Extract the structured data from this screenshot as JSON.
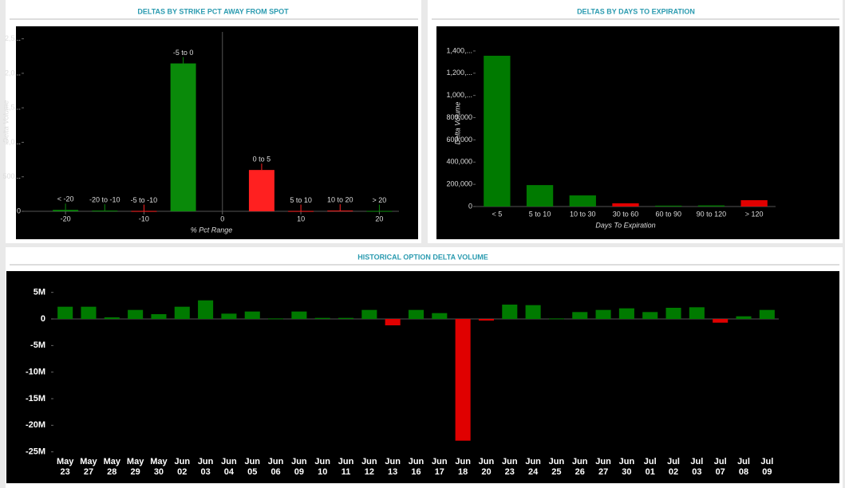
{
  "chart_data": [
    {
      "type": "bar",
      "title": "DELTAS BY STRIKE PCT AWAY FROM SPOT",
      "x": [
        -20,
        -15,
        -10,
        -5,
        5,
        10,
        15,
        20
      ],
      "categories": [
        "< -20",
        "-20 to -10",
        "-5 to -10",
        "-5 to 0",
        "0 to 5",
        "5 to 10",
        "10 to 20",
        "> 20"
      ],
      "values": [
        20,
        10,
        5,
        2143,
        599,
        5,
        10,
        5
      ],
      "colors": [
        "#0a8a0a",
        "#0a8a0a",
        "#ff2020",
        "#0a8a0a",
        "#ff2020",
        "#ff2020",
        "#ff2020",
        "#0a8a0a"
      ],
      "xlim": [
        -25.3,
        22.5
      ],
      "xticks": [
        -20,
        -10,
        0,
        10,
        20
      ],
      "ylim": [
        0,
        2600
      ],
      "yticks": [
        0,
        {
          "value": 500,
          "label": "500..."
        },
        {
          "value": 1000,
          "label": "1,0..."
        },
        {
          "value": 1500,
          "label": "1,5..."
        },
        {
          "value": 2000,
          "label": "2,0..."
        },
        {
          "value": 2500,
          "label": "2,5..."
        }
      ],
      "xlabel": "% Pct Range",
      "ylabel": "Delta Volume"
    },
    {
      "type": "bar",
      "title": "DELTAS BY DAYS TO EXPIRATION",
      "categories": [
        "< 5",
        "5 to 10",
        "10 to 30",
        "30 to 60",
        "60 to 90",
        "90 to 120",
        "> 120"
      ],
      "values": [
        1357000,
        193000,
        100000,
        29000,
        8000,
        10000,
        57000
      ],
      "colors": [
        "#007a00",
        "#007a00",
        "#007a00",
        "#e00000",
        "#007a00",
        "#007a00",
        "#e00000"
      ],
      "ylim": [
        0,
        1500000
      ],
      "yticks": [
        0,
        {
          "value": 200000,
          "label": "200,000"
        },
        {
          "value": 400000,
          "label": "400,000"
        },
        {
          "value": 600000,
          "label": "600,000"
        },
        {
          "value": 800000,
          "label": "800,000"
        },
        {
          "value": 1000000,
          "label": "1,000,..."
        },
        {
          "value": 1200000,
          "label": "1,200,..."
        },
        {
          "value": 1400000,
          "label": "1,400,..."
        }
      ],
      "xlabel": "Days To Expiration",
      "ylabel": "Delta Volume"
    },
    {
      "type": "bar",
      "title": "HISTORICAL OPTION DELTA VOLUME",
      "categories": [
        "May 23",
        "May 27",
        "May 28",
        "May 29",
        "May 30",
        "Jun 02",
        "Jun 03",
        "Jun 04",
        "Jun 05",
        "Jun 06",
        "Jun 09",
        "Jun 10",
        "Jun 11",
        "Jun 12",
        "Jun 13",
        "Jun 16",
        "Jun 17",
        "Jun 18",
        "Jun 20",
        "Jun 23",
        "Jun 24",
        "Jun 25",
        "Jun 26",
        "Jun 27",
        "Jun 30",
        "Jul 01",
        "Jul 02",
        "Jul 03",
        "Jul 07",
        "Jul 08",
        "Jul 09"
      ],
      "values": [
        2.3,
        2.3,
        0.3,
        1.7,
        0.9,
        2.3,
        3.5,
        1.0,
        1.4,
        0.1,
        1.4,
        0.2,
        0.2,
        1.7,
        -1.2,
        1.7,
        1.1,
        -22.9,
        -0.3,
        2.7,
        2.6,
        0.1,
        1.3,
        1.7,
        2.0,
        1.3,
        2.1,
        2.2,
        -0.7,
        0.5,
        1.7
      ],
      "positive_color": "#007a00",
      "negative_color": "#e00000",
      "ylim": [
        -25.5,
        7.5
      ],
      "yticks": [
        {
          "value": 5,
          "label": "5M"
        },
        0,
        {
          "value": -5,
          "label": "-5M"
        },
        {
          "value": -10,
          "label": "-10M"
        },
        {
          "value": -15,
          "label": "-15M"
        },
        {
          "value": -20,
          "label": "-20M"
        },
        {
          "value": -25,
          "label": "-25M"
        }
      ]
    }
  ]
}
